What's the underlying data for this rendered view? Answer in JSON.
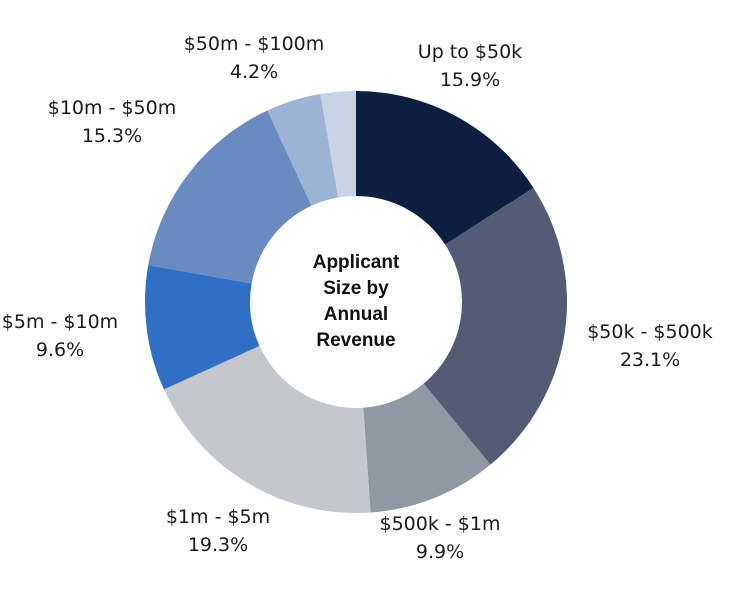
{
  "chart_data": {
    "type": "pie",
    "donut": true,
    "center_title_lines": [
      "Applicant",
      "Size by",
      "Annual",
      "Revenue"
    ],
    "categories": [
      "Up to $50k",
      "$50k - $500k",
      "$500k - $1m",
      "$1m - $5m",
      "$5m - $10m",
      "$10m - $50m",
      "$50m - $100m"
    ],
    "values": [
      15.9,
      23.1,
      9.9,
      19.3,
      9.6,
      15.3,
      4.2
    ],
    "value_labels": [
      "15.9%",
      "23.1%",
      "9.9%",
      "19.3%",
      "9.6%",
      "15.3%",
      "4.2%"
    ],
    "colors": [
      "#0c1f40",
      "#525d75",
      "#8f98a3",
      "#c4c7cc",
      "#2f6fc6",
      "#6a8bc0",
      "#9db3d4"
    ],
    "unlabeled_slice_color": "#c8d3e6",
    "legend": "none"
  }
}
